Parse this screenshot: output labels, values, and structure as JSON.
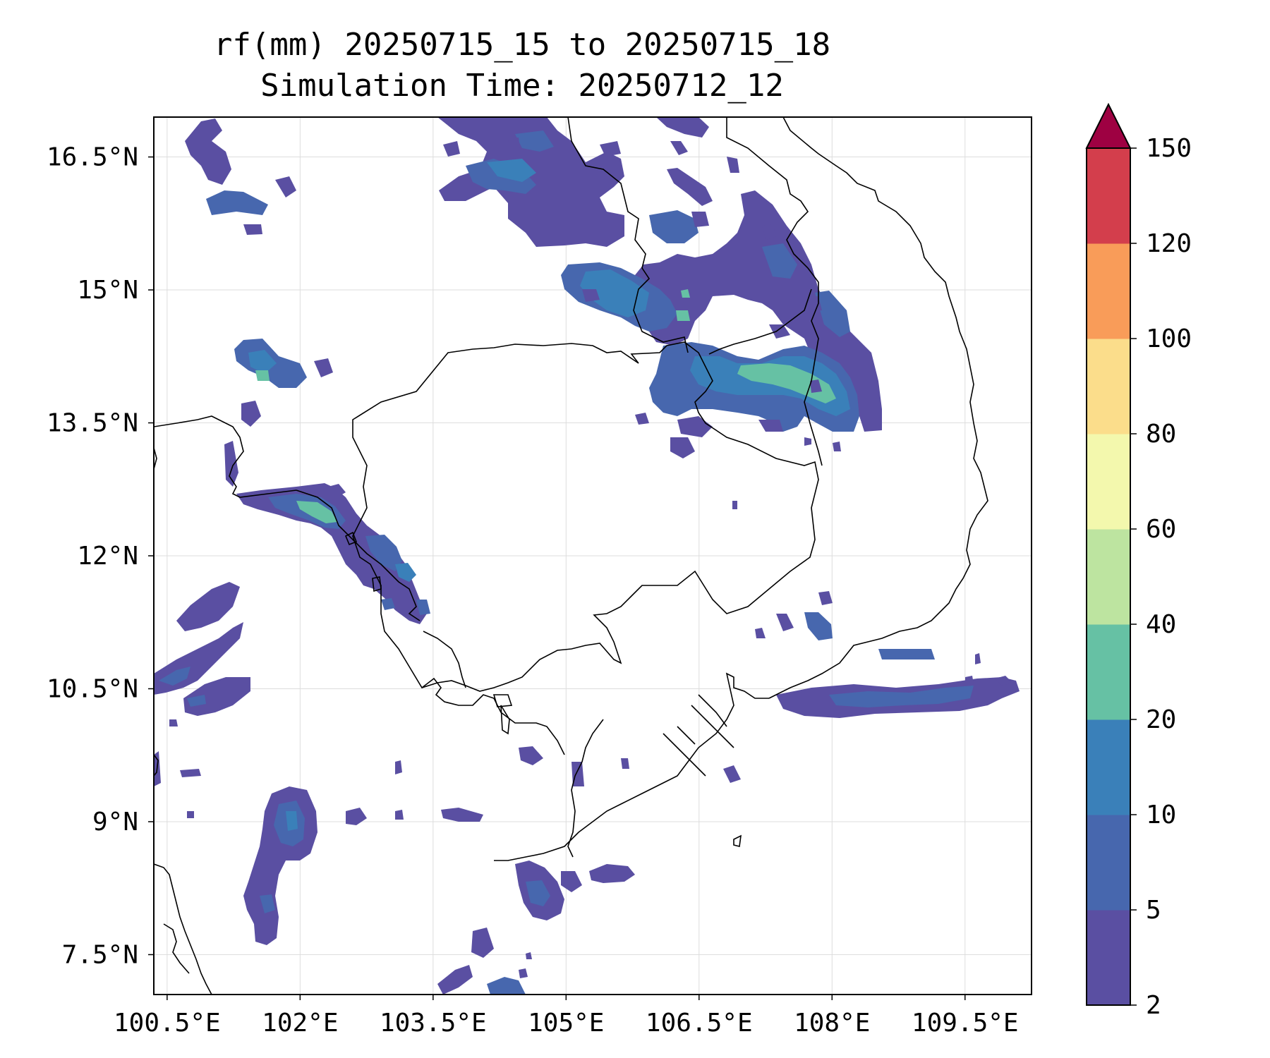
{
  "title": {
    "line1": "rf(mm) 20250715_15 to 20250715_18",
    "line2": "Simulation Time: 20250712_12"
  },
  "axes": {
    "lon_ticks": [
      "100.5°E",
      "102°E",
      "103.5°E",
      "105°E",
      "106.5°E",
      "108°E",
      "109.5°E"
    ],
    "lat_ticks": [
      "16.5°N",
      "15°N",
      "13.5°N",
      "12°N",
      "10.5°N",
      "9°N",
      "7.5°N"
    ],
    "lon_values": [
      100.5,
      102,
      103.5,
      105,
      106.5,
      108,
      109.5
    ],
    "lat_values": [
      16.5,
      15,
      13.5,
      12,
      10.5,
      9,
      7.5
    ],
    "lon_range": [
      100.35,
      110.25
    ],
    "lat_range": [
      7.05,
      16.95
    ],
    "grid": true
  },
  "colorbar": {
    "levels": [
      "2",
      "5",
      "10",
      "20",
      "40",
      "60",
      "80",
      "100",
      "120",
      "150"
    ],
    "colors": [
      "#5a4fa2",
      "#4767ae",
      "#3a80b9",
      "#66c1a4",
      "#bde4a0",
      "#f3f8ad",
      "#fbdd8b",
      "#f99c59",
      "#d33e4c",
      "#9e0142"
    ],
    "extend": "max"
  },
  "map_colors": {
    "coast": "#000000",
    "rain_low": "#5a4fa2",
    "rain_mid": "#4767ae",
    "rain_high": "#3a80b9",
    "rain_peak": "#66c1a4"
  }
}
